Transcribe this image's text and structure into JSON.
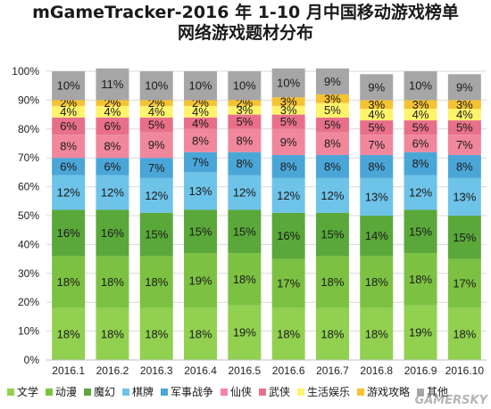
{
  "title": {
    "line1": "mGameTracker-2016 年 1-10 月中国移动游戏榜单",
    "line2": "网络游戏题材分布"
  },
  "watermark": "GAMERSKY",
  "chart_data": {
    "type": "bar",
    "stacked": true,
    "percent": true,
    "categories": [
      "2016.1",
      "2016.2",
      "2016.3",
      "2016.4",
      "2016.5",
      "2016.6",
      "2016.7",
      "2016.8",
      "2016.9",
      "2016.10"
    ],
    "y_ticks": [
      "0%",
      "10%",
      "20%",
      "30%",
      "40%",
      "50%",
      "60%",
      "70%",
      "80%",
      "90%",
      "100%"
    ],
    "ylim": [
      0,
      100
    ],
    "grid": true,
    "legend_position": "bottom",
    "series": [
      {
        "name": "文学",
        "color": "#92d050",
        "values": [
          18,
          18,
          18,
          18,
          19,
          18,
          18,
          18,
          19,
          18
        ]
      },
      {
        "name": "动漫",
        "color": "#7dc142",
        "values": [
          18,
          18,
          18,
          19,
          18,
          17,
          18,
          18,
          18,
          17
        ]
      },
      {
        "name": "魔幻",
        "color": "#5aa83a",
        "values": [
          16,
          16,
          15,
          15,
          15,
          16,
          15,
          14,
          15,
          15
        ]
      },
      {
        "name": "棋牌",
        "color": "#6ec3e8",
        "values": [
          12,
          12,
          12,
          13,
          12,
          12,
          12,
          13,
          12,
          13
        ]
      },
      {
        "name": "军事战争",
        "color": "#4ba6d8",
        "values": [
          6,
          6,
          7,
          7,
          8,
          8,
          8,
          8,
          8,
          8
        ]
      },
      {
        "name": "仙侠",
        "color": "#f0879d",
        "values": [
          8,
          8,
          9,
          8,
          8,
          9,
          8,
          7,
          6,
          7
        ]
      },
      {
        "name": "武侠",
        "color": "#e86f8a",
        "values": [
          6,
          6,
          5,
          4,
          5,
          5,
          5,
          5,
          5,
          5
        ]
      },
      {
        "name": "生活娱乐",
        "color": "#fff36b",
        "values": [
          4,
          4,
          4,
          4,
          3,
          3,
          5,
          4,
          4,
          4
        ]
      },
      {
        "name": "游戏攻略",
        "color": "#f5c232",
        "values": [
          2,
          2,
          2,
          2,
          2,
          3,
          3,
          3,
          3,
          3
        ]
      },
      {
        "name": "其他",
        "color": "#a6a6a6",
        "values": [
          10,
          11,
          10,
          10,
          10,
          10,
          9,
          9,
          10,
          9
        ]
      }
    ]
  }
}
